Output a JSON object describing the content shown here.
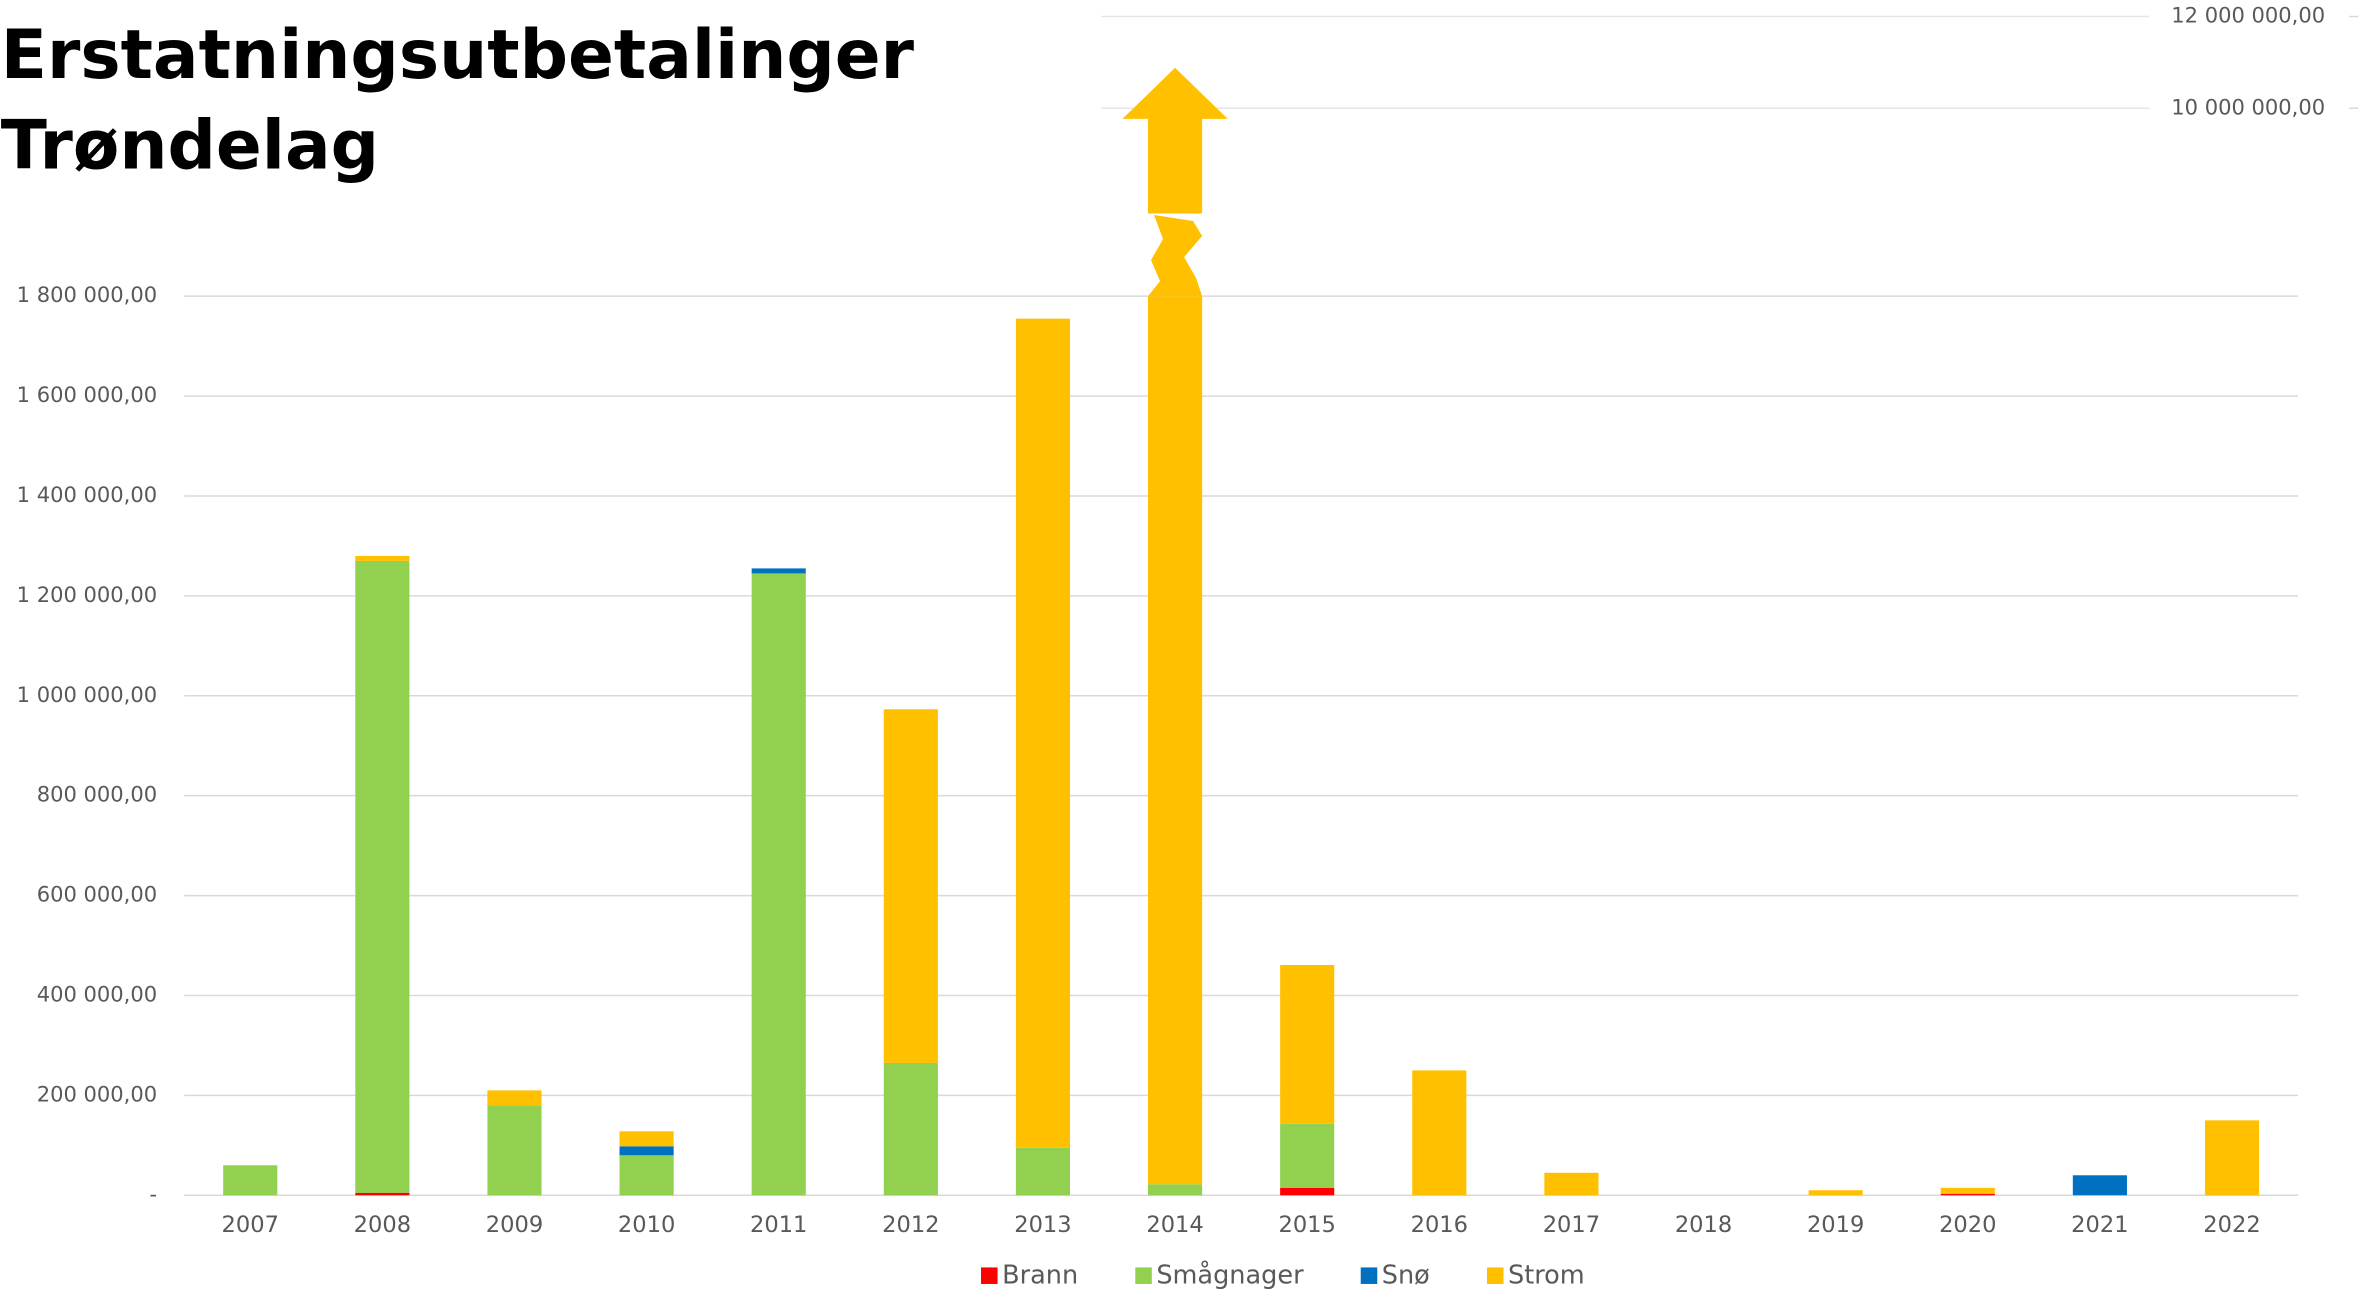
{
  "chart_data": {
    "type": "stacked_bar",
    "title": [
      "Erstatningsutbetalinger",
      "Trøndelag"
    ],
    "categories": [
      "2007",
      "2008",
      "2009",
      "2010",
      "2011",
      "2012",
      "2013",
      "2014",
      "2015",
      "2016",
      "2017",
      "2018",
      "2019",
      "2020",
      "2021",
      "2022"
    ],
    "series": [
      {
        "name": "Brann",
        "color": "#ff0000",
        "values": [
          0,
          5000,
          0,
          0,
          0,
          0,
          0,
          0,
          15000,
          0,
          0,
          0,
          0,
          3000,
          0,
          0
        ]
      },
      {
        "name": "Smågnager",
        "color": "#92d050",
        "values": [
          60000,
          1265000,
          180000,
          80000,
          1245000,
          265000,
          95000,
          22000,
          128000,
          0,
          0,
          0,
          0,
          0,
          0,
          0
        ]
      },
      {
        "name": "Snø",
        "color": "#0070c0",
        "values": [
          0,
          0,
          0,
          18000,
          10000,
          0,
          0,
          0,
          0,
          0,
          0,
          0,
          0,
          0,
          40000,
          0
        ]
      },
      {
        "name": "Strom",
        "color": "#ffc000",
        "values": [
          0,
          10000,
          30000,
          30000,
          0,
          708000,
          1660000,
          10860000,
          318000,
          250000,
          45000,
          0,
          10000,
          12000,
          0,
          150000
        ]
      }
    ],
    "ylim": [
      0,
      1800000
    ],
    "yticks": [
      {
        "value": 0,
        "label": "-"
      },
      {
        "value": 200000,
        "label": "200 000,00"
      },
      {
        "value": 400000,
        "label": "400 000,00"
      },
      {
        "value": 600000,
        "label": "600 000,00"
      },
      {
        "value": 800000,
        "label": "800 000,00"
      },
      {
        "value": 1000000,
        "label": "1 000 000,00"
      },
      {
        "value": 1200000,
        "label": "1 200 000,00"
      },
      {
        "value": 1400000,
        "label": "1 400 000,00"
      },
      {
        "value": 1600000,
        "label": "1 600 000,00"
      },
      {
        "value": 1800000,
        "label": "1 800 000,00"
      }
    ],
    "y2lim": [
      8000000,
      12000000
    ],
    "y2ticks": [
      {
        "value": 10000000,
        "label": "10 000 000,00"
      },
      {
        "value": 12000000,
        "label": "12 000 000,00"
      }
    ],
    "grid": true,
    "legend": "bottom"
  }
}
